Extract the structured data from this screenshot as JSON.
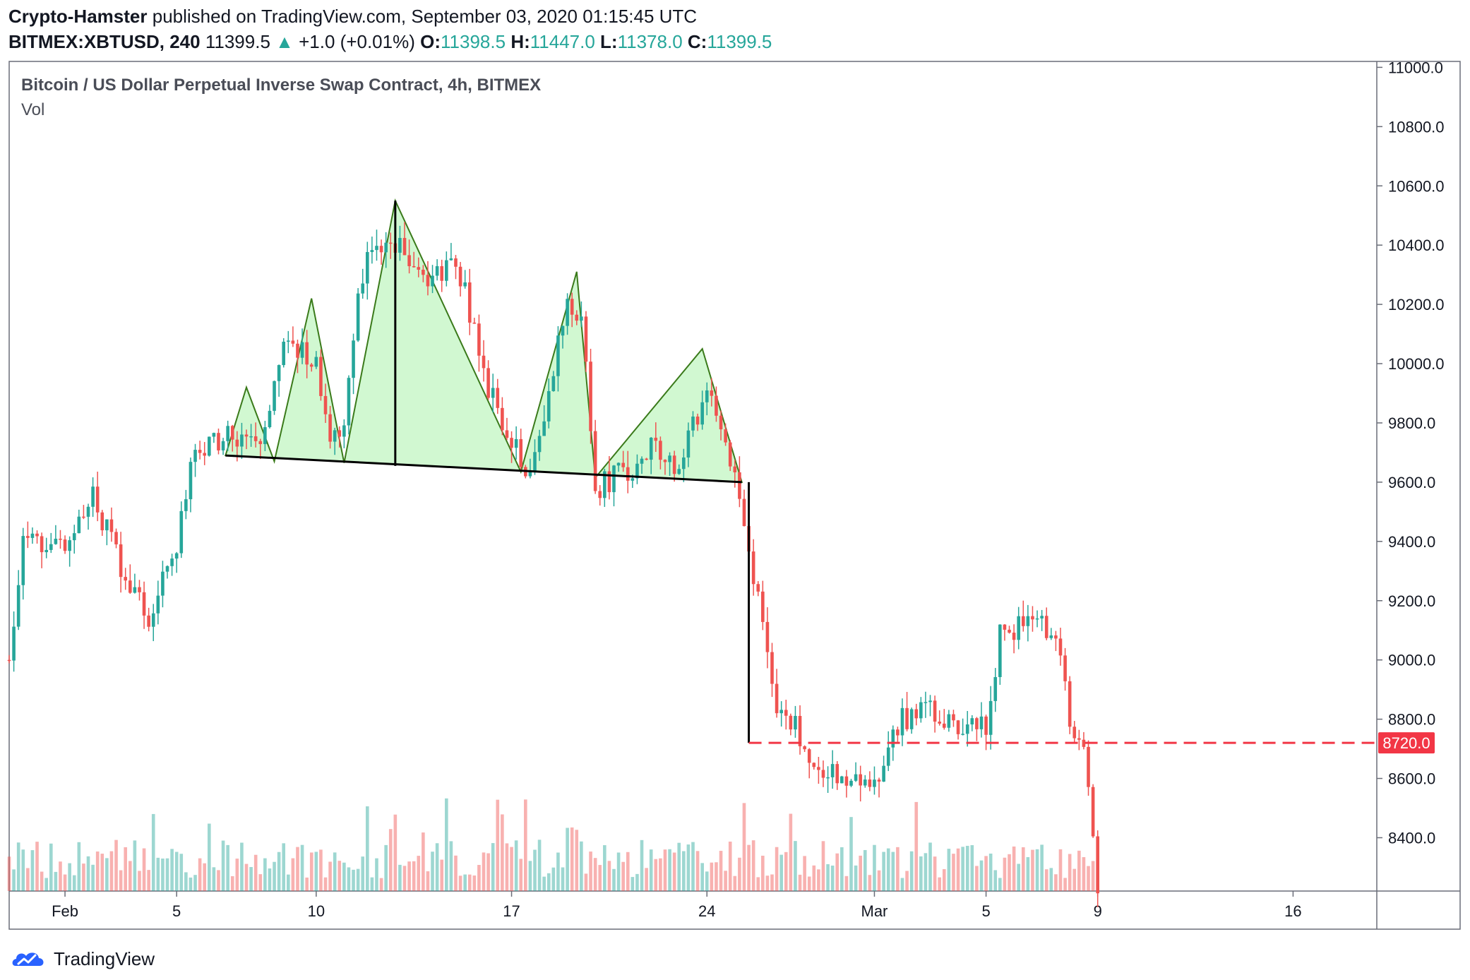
{
  "header": {
    "author": "Crypto-Hamster",
    "published_text": "published on TradingView.com, September 03, 2020 01:15:45 UTC",
    "symbol": "BITMEX:XBTUSD, 240",
    "last": "11399.5",
    "change_arrow": "▲",
    "change": "+1.0 (+0.01%)",
    "o_label": "O:",
    "o": "11398.5",
    "h_label": "H:",
    "h": "11447.0",
    "l_label": "L:",
    "l": "11378.0",
    "c_label": "C:",
    "c": "11399.5"
  },
  "brand": {
    "logo": "tradingview-logo-icon",
    "text": "TradingView"
  },
  "colors": {
    "up": "#26a69a",
    "down": "#ef5350",
    "pattern_fill": "#ccf7cc",
    "pattern_line": "#3a7a1a",
    "target": "#f23645"
  },
  "chart_data": {
    "type": "candlestick",
    "title": "Bitcoin / US Dollar Perpetual Inverse Swap Contract, 4h, BITMEX",
    "indicator": "Vol",
    "ylim": [
      8220,
      11020
    ],
    "yticks": [
      11000,
      10800,
      10600,
      10400,
      10200,
      10000,
      9800,
      9600,
      9400,
      9200,
      9000,
      8800,
      8600,
      8400
    ],
    "ytick_labels": [
      "11000.0",
      "10800.0",
      "10600.0",
      "10400.0",
      "10200.0",
      "10000.0",
      "9800.0",
      "9600.0",
      "9400.0",
      "9200.0",
      "9000.0",
      "8800.0",
      "8600.0",
      "8400.0"
    ],
    "x_start": "2020-01-30",
    "x_end": "2020-03-19",
    "xticks": [
      {
        "date": "2020-02-01",
        "label": "Feb"
      },
      {
        "date": "2020-02-05",
        "label": "5"
      },
      {
        "date": "2020-02-10",
        "label": "10"
      },
      {
        "date": "2020-02-17",
        "label": "17"
      },
      {
        "date": "2020-02-24",
        "label": "24"
      },
      {
        "date": "2020-03-01",
        "label": "Mar"
      },
      {
        "date": "2020-03-05",
        "label": "5"
      },
      {
        "date": "2020-03-09",
        "label": "9"
      },
      {
        "date": "2020-03-16",
        "label": "16"
      }
    ],
    "ohlc_anchors": [
      {
        "date": "2020-01-30",
        "close": 9000
      },
      {
        "date": "2020-01-30 12:00",
        "close": 9420
      },
      {
        "date": "2020-02-01",
        "close": 9380
      },
      {
        "date": "2020-02-02",
        "close": 9550
      },
      {
        "date": "2020-02-03",
        "close": 9320
      },
      {
        "date": "2020-02-04",
        "close": 9150
      },
      {
        "date": "2020-02-05",
        "close": 9390
      },
      {
        "date": "2020-02-05 12:00",
        "close": 9680
      },
      {
        "date": "2020-02-07",
        "close": 9770
      },
      {
        "date": "2020-02-08",
        "close": 9700
      },
      {
        "date": "2020-02-09",
        "close": 10100
      },
      {
        "date": "2020-02-10",
        "close": 9980
      },
      {
        "date": "2020-02-10 12:00",
        "close": 9750
      },
      {
        "date": "2020-02-11",
        "close": 9820
      },
      {
        "date": "2020-02-11 12:00",
        "close": 10260
      },
      {
        "date": "2020-02-12",
        "close": 10380
      },
      {
        "date": "2020-02-13",
        "close": 10400
      },
      {
        "date": "2020-02-14",
        "close": 10280
      },
      {
        "date": "2020-02-15",
        "close": 10360
      },
      {
        "date": "2020-02-15 12:00",
        "close": 10170
      },
      {
        "date": "2020-02-16",
        "close": 9940
      },
      {
        "date": "2020-02-17",
        "close": 9760
      },
      {
        "date": "2020-02-17 12:00",
        "close": 9640
      },
      {
        "date": "2020-02-18",
        "close": 9760
      },
      {
        "date": "2020-02-19",
        "close": 10200
      },
      {
        "date": "2020-02-19 12:00",
        "close": 10180
      },
      {
        "date": "2020-02-20",
        "close": 9580
      },
      {
        "date": "2020-02-21",
        "close": 9630
      },
      {
        "date": "2020-02-22",
        "close": 9710
      },
      {
        "date": "2020-02-23",
        "close": 9660
      },
      {
        "date": "2020-02-24",
        "close": 9920
      },
      {
        "date": "2020-02-24 12:00",
        "close": 9760
      },
      {
        "date": "2020-02-25",
        "close": 9590
      },
      {
        "date": "2020-02-25 12:00",
        "close": 9380
      },
      {
        "date": "2020-02-26",
        "close": 9100
      },
      {
        "date": "2020-02-26 12:00",
        "close": 8800
      },
      {
        "date": "2020-02-27",
        "close": 8810
      },
      {
        "date": "2020-02-28",
        "close": 8640
      },
      {
        "date": "2020-02-29",
        "close": 8620
      },
      {
        "date": "2020-03-01",
        "close": 8570
      },
      {
        "date": "2020-03-02",
        "close": 8800
      },
      {
        "date": "2020-03-03",
        "close": 8820
      },
      {
        "date": "2020-03-04",
        "close": 8760
      },
      {
        "date": "2020-03-05",
        "close": 8780
      },
      {
        "date": "2020-03-05 12:00",
        "close": 9080
      },
      {
        "date": "2020-03-06",
        "close": 9110
      },
      {
        "date": "2020-03-07",
        "close": 9120
      },
      {
        "date": "2020-03-07 12:00",
        "close": 9080
      },
      {
        "date": "2020-03-08",
        "close": 8810
      },
      {
        "date": "2020-03-08 12:00",
        "close": 8720
      },
      {
        "date": "2020-03-09",
        "close": 8240
      }
    ],
    "pattern": {
      "name": "head-and-shoulders",
      "neckline": [
        {
          "date": "2020-02-06 18:00",
          "price": 9690
        },
        {
          "date": "2020-02-25 06:00",
          "price": 9600
        }
      ],
      "outline": [
        {
          "date": "2020-02-06 18:00",
          "price": 9690
        },
        {
          "date": "2020-02-07 12:00",
          "price": 9920
        },
        {
          "date": "2020-02-08 12:00",
          "price": 9670
        },
        {
          "date": "2020-02-09 20:00",
          "price": 10220
        },
        {
          "date": "2020-02-11",
          "price": 9665
        },
        {
          "date": "2020-02-12 20:00",
          "price": 10550
        },
        {
          "date": "2020-02-17 08:00",
          "price": 9635
        },
        {
          "date": "2020-02-19 08:00",
          "price": 10310
        },
        {
          "date": "2020-02-20",
          "price": 9615
        },
        {
          "date": "2020-02-23 20:00",
          "price": 10050
        },
        {
          "date": "2020-02-25 06:00",
          "price": 9600
        }
      ],
      "head_height_line": [
        {
          "date": "2020-02-12 20:00",
          "price": 10550
        },
        {
          "date": "2020-02-12 20:00",
          "price": 9655
        }
      ],
      "breakdown_line": [
        {
          "date": "2020-02-25 12:00",
          "price": 9600
        },
        {
          "date": "2020-02-25 12:00",
          "price": 8720
        }
      ],
      "target_price": 8720,
      "target_label": "8720.0",
      "target_from": "2020-02-25 12:00"
    }
  }
}
